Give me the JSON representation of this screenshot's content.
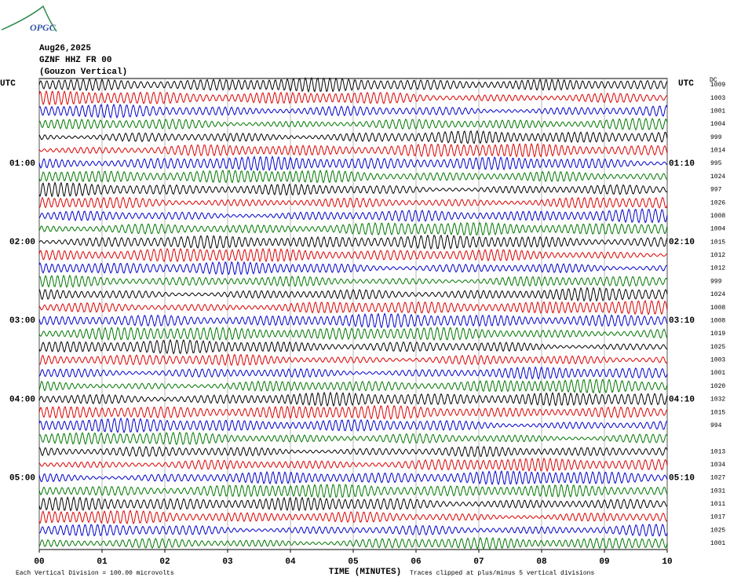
{
  "chart_data": {
    "type": "helicorder",
    "logo": "OPGC",
    "title_lines": [
      "Aug26,2025",
      "GZNF HHZ FR 00",
      "(Gouzon Vertical)"
    ],
    "left_axis_label": "UTC",
    "right_axis_label": "UTC",
    "right_column_header": "DC",
    "xlabel": "TIME (MINUTES)",
    "xlim": [
      0,
      10
    ],
    "xticks": [
      {
        "value": 0,
        "label": "00"
      },
      {
        "value": 1,
        "label": "01"
      },
      {
        "value": 2,
        "label": "02"
      },
      {
        "value": 3,
        "label": "03"
      },
      {
        "value": 4,
        "label": "04"
      },
      {
        "value": 5,
        "label": "05"
      },
      {
        "value": 6,
        "label": "06"
      },
      {
        "value": 7,
        "label": "07"
      },
      {
        "value": 8,
        "label": "08"
      },
      {
        "value": 9,
        "label": "09"
      },
      {
        "value": 10,
        "label": "10"
      }
    ],
    "grid": true,
    "trace_colors": [
      "#000000",
      "#dd0000",
      "#0000cc",
      "#007700"
    ],
    "left_time_labels": [
      null,
      null,
      null,
      null,
      null,
      null,
      "01:00",
      null,
      null,
      null,
      null,
      null,
      "02:00",
      null,
      null,
      null,
      null,
      null,
      "03:00",
      null,
      null,
      null,
      null,
      null,
      "04:00",
      null,
      null,
      null,
      null,
      null,
      "05:00",
      null,
      null,
      null,
      null,
      null
    ],
    "right_time_labels": [
      null,
      null,
      null,
      null,
      null,
      null,
      "01:10",
      null,
      null,
      null,
      null,
      null,
      "02:10",
      null,
      null,
      null,
      null,
      null,
      "03:10",
      null,
      null,
      null,
      null,
      null,
      "04:10",
      null,
      null,
      null,
      null,
      null,
      "05:10",
      null,
      null,
      null,
      null,
      null
    ],
    "right_values": [
      1009,
      1003,
      1001,
      1004,
      999,
      1014,
      995,
      1024,
      997,
      1026,
      1008,
      1004,
      1015,
      1012,
      1012,
      999,
      1024,
      1008,
      1008,
      1019,
      1025,
      1003,
      1001,
      1020,
      1032,
      1015,
      994,
      null,
      1013,
      1034,
      1027,
      1031,
      1011,
      1017,
      1025,
      1001
    ],
    "footnote_left": "Each Vertical Division =  100.00 microvolts",
    "footnote_right": "Traces clipped at plus/minus 5 vertical divisions"
  }
}
